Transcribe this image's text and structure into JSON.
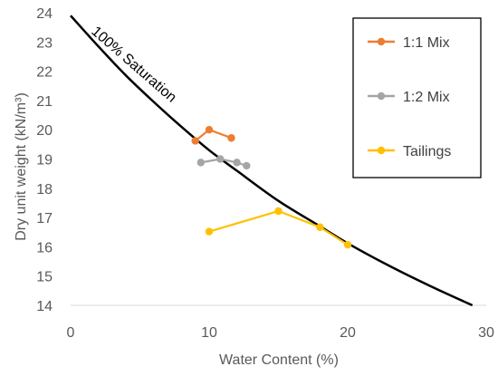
{
  "chart_data": {
    "type": "line",
    "title": "",
    "xlabel": "Water Content (%)",
    "ylabel": "Dry unit weight (kN/m³)",
    "xlim": [
      0,
      30
    ],
    "ylim": [
      14,
      24
    ],
    "x_ticks": [
      0,
      10,
      20,
      30
    ],
    "y_ticks": [
      14,
      15,
      16,
      17,
      18,
      19,
      20,
      21,
      22,
      23,
      24
    ],
    "grid": false,
    "legend": "right",
    "series": [
      {
        "name": "1:1 Mix",
        "color": "#ED7D31",
        "marker": true,
        "x": [
          9.0,
          10.0,
          11.6
        ],
        "y": [
          19.62,
          20.0,
          19.72
        ]
      },
      {
        "name": "1:2 Mix",
        "color": "#A5A5A5",
        "marker": true,
        "x": [
          9.4,
          10.8,
          12.0,
          12.7
        ],
        "y": [
          18.88,
          19.0,
          18.88,
          18.77
        ]
      },
      {
        "name": "Tailings",
        "color": "#FFC000",
        "marker": true,
        "x": [
          10.0,
          15.0,
          18.0,
          20.0
        ],
        "y": [
          16.52,
          17.22,
          16.67,
          16.07
        ]
      },
      {
        "label": "100% Saturation",
        "color": "#000000",
        "marker": false,
        "x": [
          0,
          2,
          4,
          6,
          8,
          10,
          12,
          15,
          18,
          20,
          23,
          26,
          29
        ],
        "y": [
          23.9,
          22.85,
          21.85,
          20.95,
          20.1,
          19.3,
          18.6,
          17.57,
          16.7,
          16.12,
          15.35,
          14.65,
          14.0
        ]
      }
    ]
  }
}
